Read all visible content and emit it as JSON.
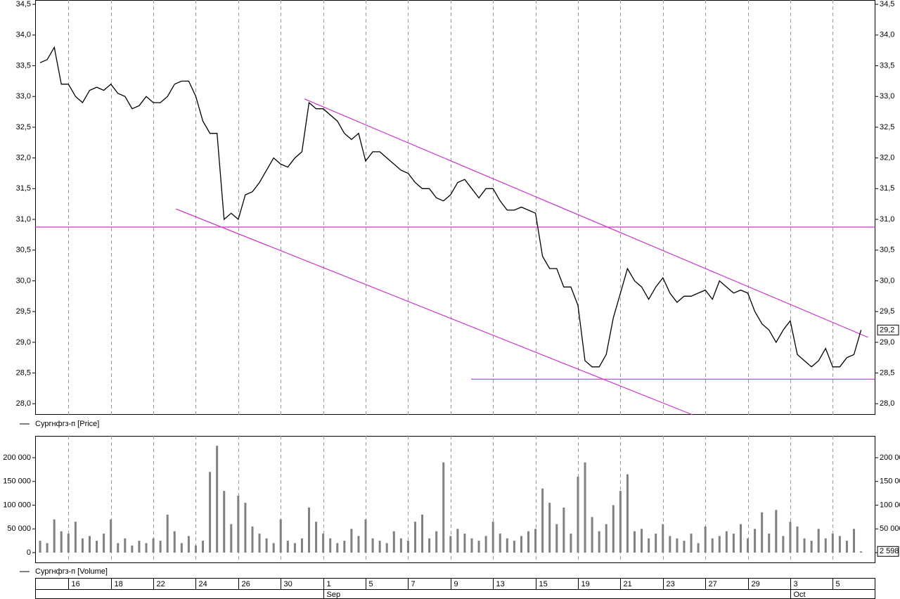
{
  "chart_data": [
    {
      "type": "line",
      "legend": "Сургнфгз-п [Price]",
      "color": "#000000",
      "categories": [
        null,
        null,
        null,
        null,
        "16",
        null,
        null,
        null,
        null,
        null,
        "18",
        null,
        null,
        null,
        null,
        null,
        "22",
        null,
        null,
        null,
        null,
        null,
        "24",
        null,
        null,
        null,
        null,
        null,
        "26",
        null,
        null,
        null,
        null,
        null,
        "30",
        null,
        null,
        null,
        null,
        null,
        "1",
        null,
        null,
        null,
        null,
        null,
        "5",
        null,
        null,
        null,
        null,
        null,
        "7",
        null,
        null,
        null,
        null,
        null,
        "9",
        null,
        null,
        null,
        null,
        null,
        "13",
        null,
        null,
        null,
        null,
        null,
        "15",
        null,
        null,
        null,
        null,
        null,
        "19",
        null,
        null,
        null,
        null,
        null,
        "21",
        null,
        null,
        null,
        null,
        null,
        "23",
        null,
        null,
        null,
        null,
        null,
        "27",
        null,
        null,
        null,
        null,
        null,
        "29",
        null,
        null,
        null,
        null,
        null,
        "3",
        null,
        null,
        null,
        null,
        null,
        "5",
        null,
        null,
        null,
        null
      ],
      "months": [
        null,
        null,
        null,
        null,
        null,
        null,
        null,
        null,
        null,
        null,
        null,
        null,
        null,
        null,
        null,
        null,
        null,
        null,
        null,
        null,
        null,
        null,
        null,
        null,
        null,
        null,
        null,
        null,
        null,
        null,
        null,
        null,
        null,
        null,
        null,
        null,
        null,
        null,
        null,
        null,
        "Sep",
        null,
        null,
        null,
        null,
        null,
        null,
        null,
        null,
        null,
        null,
        null,
        null,
        null,
        null,
        null,
        null,
        null,
        null,
        null,
        null,
        null,
        null,
        null,
        null,
        null,
        null,
        null,
        null,
        null,
        null,
        null,
        null,
        null,
        null,
        null,
        null,
        null,
        null,
        null,
        null,
        null,
        null,
        null,
        null,
        null,
        null,
        null,
        null,
        null,
        null,
        null,
        null,
        null,
        null,
        null,
        null,
        null,
        null,
        null,
        null,
        null,
        null,
        null,
        null,
        null,
        "Oct",
        null,
        null,
        null,
        null,
        null,
        null,
        null,
        null,
        null,
        null
      ],
      "values": [
        33.55,
        33.6,
        33.8,
        33.2,
        33.2,
        33.0,
        32.9,
        33.1,
        33.15,
        33.1,
        33.2,
        33.05,
        33.0,
        32.8,
        32.85,
        33.0,
        32.9,
        32.9,
        33.0,
        33.2,
        33.25,
        33.25,
        33.0,
        32.6,
        32.4,
        32.4,
        31.0,
        31.1,
        31.0,
        31.4,
        31.45,
        31.6,
        31.8,
        32.0,
        31.9,
        31.85,
        32.0,
        32.1,
        32.9,
        32.8,
        32.8,
        32.7,
        32.6,
        32.4,
        32.3,
        32.4,
        31.95,
        32.1,
        32.1,
        32.0,
        31.9,
        31.8,
        31.75,
        31.6,
        31.5,
        31.5,
        31.35,
        31.3,
        31.4,
        31.6,
        31.65,
        31.5,
        31.35,
        31.5,
        31.5,
        31.3,
        31.15,
        31.15,
        31.2,
        31.15,
        31.1,
        30.4,
        30.2,
        30.2,
        29.9,
        29.9,
        29.6,
        28.7,
        28.6,
        28.6,
        28.8,
        29.4,
        29.8,
        30.2,
        30.0,
        29.9,
        29.7,
        29.9,
        30.05,
        29.8,
        29.65,
        29.75,
        29.75,
        29.8,
        29.85,
        29.7,
        30.0,
        29.9,
        29.8,
        29.85,
        29.8,
        29.5,
        29.3,
        29.2,
        29.0,
        29.2,
        29.35,
        28.8,
        28.7,
        28.6,
        28.7,
        28.9,
        28.6,
        28.6,
        28.75,
        28.8,
        29.2
      ],
      "last_label": {
        "value": 29.2,
        "label": "29,2"
      },
      "ylim": [
        27.82,
        34.57
      ],
      "yticks": [
        {
          "value": 28,
          "label": "28,0"
        },
        {
          "value": 28.5,
          "label": "28,5"
        },
        {
          "value": 29,
          "label": "29,0"
        },
        {
          "value": 29.5,
          "label": "29,5"
        },
        {
          "value": 30,
          "label": "30,0"
        },
        {
          "value": 30.5,
          "label": "30,5"
        },
        {
          "value": 31,
          "label": "31,0"
        },
        {
          "value": 31.5,
          "label": "31,5"
        },
        {
          "value": 32,
          "label": "32,0"
        },
        {
          "value": 32.5,
          "label": "32,5"
        },
        {
          "value": 33,
          "label": "33,0"
        },
        {
          "value": 33.5,
          "label": "33,5"
        },
        {
          "value": 34,
          "label": "34,0"
        },
        {
          "value": 34.5,
          "label": "34,5"
        }
      ],
      "trendline_color": "#cc33cc",
      "trendlines": [
        {
          "x": [
            -0.7,
            118
          ],
          "y": [
            30.875,
            30.875
          ]
        },
        {
          "x": [
            60.9,
            118
          ],
          "y": [
            28.4,
            28.4
          ]
        },
        {
          "x": [
            37.35,
            117
          ],
          "y": [
            32.96,
            29.08
          ]
        },
        {
          "x": [
            19.2,
            92.2
          ],
          "y": [
            31.17,
            27.82
          ]
        }
      ]
    },
    {
      "type": "bar",
      "legend": "Сургнфгз-п [Volume]",
      "color": "#808080",
      "values": [
        25000,
        20000,
        70000,
        45000,
        40000,
        65000,
        30000,
        35000,
        25000,
        40000,
        70000,
        20000,
        30000,
        15000,
        25000,
        20000,
        30000,
        25000,
        80000,
        45000,
        20000,
        35000,
        15000,
        25000,
        170000,
        225000,
        130000,
        60000,
        120000,
        105000,
        55000,
        40000,
        30000,
        20000,
        70000,
        25000,
        20000,
        30000,
        95000,
        65000,
        40000,
        30000,
        20000,
        25000,
        50000,
        35000,
        70000,
        30000,
        25000,
        20000,
        45000,
        30000,
        25000,
        65000,
        80000,
        30000,
        45000,
        190000,
        35000,
        50000,
        40000,
        30000,
        25000,
        35000,
        65000,
        40000,
        30000,
        25000,
        35000,
        45000,
        50000,
        135000,
        105000,
        60000,
        95000,
        40000,
        160000,
        190000,
        75000,
        45000,
        60000,
        100000,
        130000,
        165000,
        45000,
        50000,
        30000,
        40000,
        60000,
        35000,
        30000,
        25000,
        40000,
        20000,
        55000,
        30000,
        35000,
        45000,
        40000,
        60000,
        30000,
        50000,
        85000,
        40000,
        90000,
        35000,
        65000,
        55000,
        30000,
        25000,
        50000,
        30000,
        40000,
        35000,
        25000,
        50000,
        2598
      ],
      "last_label": {
        "value": 2598,
        "label": "2 598"
      },
      "ylim": [
        -20700,
        245900
      ],
      "yticks": [
        0,
        {
          "value": 50000,
          "label": "50 000"
        },
        {
          "value": 100000,
          "label": "100 000"
        },
        {
          "value": 150000,
          "label": "150 000"
        },
        {
          "value": 200000,
          "label": "200 000"
        }
      ]
    }
  ]
}
